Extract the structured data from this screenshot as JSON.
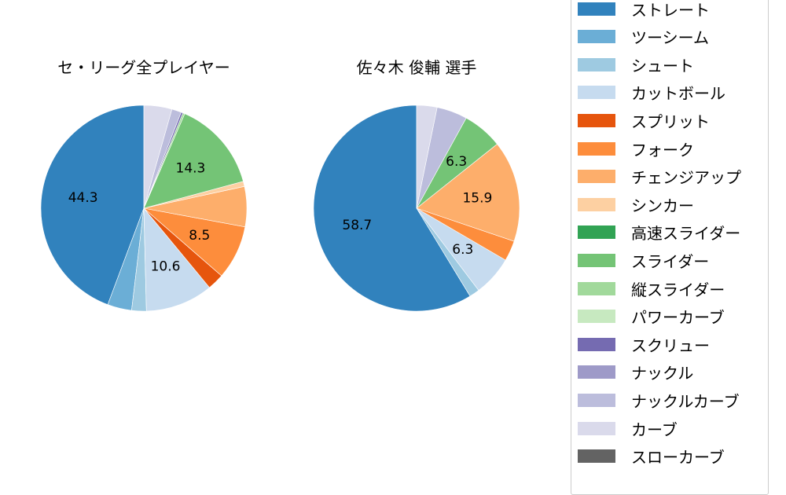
{
  "chart_data": [
    {
      "type": "pie",
      "title": "セ・リーグ全プレイヤー",
      "categories": [
        "ストレート",
        "ツーシーム",
        "シュート",
        "カットボール",
        "スプリット",
        "フォーク",
        "チェンジアップ",
        "シンカー",
        "スライダー",
        "縦スライダー",
        "スクリュー",
        "ナックルカーブ",
        "カーブ"
      ],
      "values": [
        44.3,
        3.8,
        2.3,
        10.6,
        2.6,
        8.5,
        6.3,
        0.8,
        14.3,
        0.3,
        0.3,
        1.5,
        4.4
      ],
      "labels_shown": [
        "44.3",
        "10.6",
        "8.5",
        "14.3"
      ],
      "start_angle": 90,
      "direction": "counterclockwise"
    },
    {
      "type": "pie",
      "title": "佐々木 俊輔  選手",
      "categories": [
        "ストレート",
        "シュート",
        "カットボール",
        "フォーク",
        "チェンジアップ",
        "スライダー",
        "ナックルカーブ",
        "カーブ"
      ],
      "values": [
        58.7,
        1.6,
        6.3,
        3.2,
        15.9,
        6.3,
        4.8,
        3.2
      ],
      "labels_shown": [
        "58.7",
        "6.3",
        "15.9",
        "6.3"
      ],
      "start_angle": 90,
      "direction": "counterclockwise"
    }
  ],
  "legend": {
    "items": [
      {
        "label": "ストレート",
        "color": "#3182bd"
      },
      {
        "label": "ツーシーム",
        "color": "#6baed6"
      },
      {
        "label": "シュート",
        "color": "#9ecae1"
      },
      {
        "label": "カットボール",
        "color": "#c6dbef"
      },
      {
        "label": "スプリット",
        "color": "#e6550d"
      },
      {
        "label": "フォーク",
        "color": "#fd8d3c"
      },
      {
        "label": "チェンジアップ",
        "color": "#fdae6b"
      },
      {
        "label": "シンカー",
        "color": "#fdd0a2"
      },
      {
        "label": "高速スライダー",
        "color": "#31a354"
      },
      {
        "label": "スライダー",
        "color": "#74c476"
      },
      {
        "label": "縦スライダー",
        "color": "#a1d99b"
      },
      {
        "label": "パワーカーブ",
        "color": "#c7e9c0"
      },
      {
        "label": "スクリュー",
        "color": "#756bb1"
      },
      {
        "label": "ナックル",
        "color": "#9e9ac8"
      },
      {
        "label": "ナックルカーブ",
        "color": "#bcbddc"
      },
      {
        "label": "カーブ",
        "color": "#dadaeb"
      },
      {
        "label": "スローカーブ",
        "color": "#636363"
      }
    ]
  },
  "titles": {
    "left": "セ・リーグ全プレイヤー",
    "right": "佐々木 俊輔  選手"
  }
}
